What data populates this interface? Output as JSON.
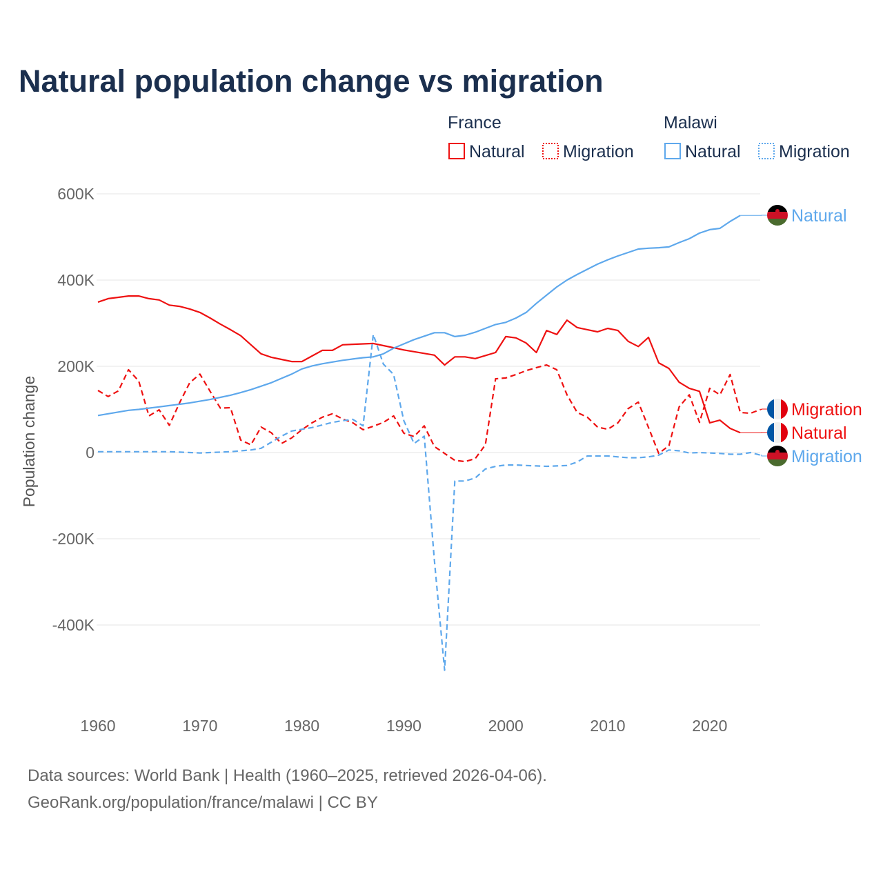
{
  "chart_data": {
    "type": "line",
    "title": "Natural population change vs migration",
    "xlabel": "",
    "ylabel": "Population change",
    "xlim": [
      1960,
      2025
    ],
    "ylim": [
      -530000,
      620000
    ],
    "grid": true,
    "legend_placement": "top-right",
    "x_ticks": [
      {
        "value": 1960,
        "label": "1960"
      },
      {
        "value": 1970,
        "label": "1970"
      },
      {
        "value": 1980,
        "label": "1980"
      },
      {
        "value": 1990,
        "label": "1990"
      },
      {
        "value": 2000,
        "label": "2000"
      },
      {
        "value": 2010,
        "label": "2010"
      },
      {
        "value": 2020,
        "label": "2020"
      }
    ],
    "y_ticks": [
      {
        "value": 600000,
        "label": "600K"
      },
      {
        "value": 400000,
        "label": "400K"
      },
      {
        "value": 200000,
        "label": "200K"
      },
      {
        "value": 0,
        "label": "0"
      },
      {
        "value": -200000,
        "label": "-200K"
      },
      {
        "value": -400000,
        "label": "-400K"
      }
    ],
    "legend": {
      "groups": [
        {
          "country": "France",
          "items": [
            {
              "label": "Natural",
              "style": "solid"
            },
            {
              "label": "Migration",
              "style": "dotted"
            }
          ],
          "color": "#ee1111"
        },
        {
          "country": "Malawi",
          "items": [
            {
              "label": "Natural",
              "style": "solid"
            },
            {
              "label": "Migration",
              "style": "dotted"
            }
          ],
          "color": "#5ea8ec"
        }
      ]
    },
    "series": [
      {
        "name": "France Natural",
        "country": "France",
        "kind": "Natural",
        "color": "#ee1111",
        "dash": false,
        "flag": "france",
        "end_label": "Natural",
        "start_year": 1960,
        "values": [
          349,
          357,
          360,
          363,
          363,
          357,
          354,
          342,
          339,
          333,
          325,
          312,
          298,
          285,
          271,
          250,
          229,
          221,
          216,
          211,
          211,
          224,
          237,
          237,
          250,
          251,
          252,
          253,
          248,
          243,
          238,
          234,
          230,
          226,
          203,
          222,
          222,
          218,
          225,
          232,
          269,
          266,
          254,
          232,
          283,
          274,
          307,
          290,
          285,
          280,
          288,
          283,
          258,
          246,
          267,
          208,
          195,
          163,
          149,
          142,
          69,
          75,
          56,
          46
        ],
        "unit_multiplier": 1000
      },
      {
        "name": "France Migration",
        "country": "France",
        "kind": "Migration",
        "color": "#ee1111",
        "dash": true,
        "flag": "france",
        "end_label": "Migration",
        "start_year": 1960,
        "values": [
          144,
          130,
          143,
          192,
          166,
          85,
          99,
          63,
          115,
          162,
          182,
          142,
          103,
          104,
          29,
          18,
          59,
          46,
          21,
          34,
          53,
          69,
          82,
          90,
          78,
          69,
          53,
          61,
          70,
          85,
          45,
          37,
          62,
          14,
          -2,
          -18,
          -21,
          -14,
          18,
          171,
          173,
          181,
          190,
          197,
          203,
          192,
          134,
          93,
          82,
          59,
          54,
          69,
          102,
          117,
          58,
          -2,
          16,
          106,
          134,
          70,
          149,
          134,
          181,
          93,
          91,
          100
        ],
        "unit_multiplier": 1000
      },
      {
        "name": "Malawi Natural",
        "country": "Malawi",
        "kind": "Natural",
        "color": "#5ea8ec",
        "dash": false,
        "flag": "malawi",
        "end_label": "Natural",
        "start_year": 1960,
        "values": [
          86,
          90,
          94,
          98,
          100,
          103,
          106,
          109,
          112,
          115,
          119,
          123,
          128,
          133,
          139,
          146,
          154,
          162,
          172,
          182,
          194,
          201,
          206,
          210,
          214,
          217,
          220,
          222,
          229,
          242,
          252,
          262,
          270,
          278,
          278,
          269,
          272,
          279,
          288,
          297,
          302,
          312,
          325,
          346,
          365,
          384,
          400,
          413,
          425,
          437,
          447,
          456,
          464,
          472,
          474,
          475,
          477,
          487,
          496,
          509,
          517,
          520,
          536,
          550
        ],
        "unit_multiplier": 1000
      },
      {
        "name": "Malawi Migration",
        "country": "Malawi",
        "kind": "Migration",
        "color": "#5ea8ec",
        "dash": true,
        "flag": "malawi",
        "end_label": "Migration",
        "start_year": 1960,
        "values": [
          2,
          2,
          2,
          2,
          2,
          2,
          2,
          2,
          1,
          0,
          -1,
          0,
          1,
          2,
          4,
          6,
          10,
          24,
          38,
          50,
          54,
          58,
          64,
          70,
          74,
          77,
          62,
          274,
          205,
          181,
          74,
          21,
          38,
          -250,
          -505,
          -66,
          -66,
          -59,
          -38,
          -32,
          -29,
          -29,
          -30,
          -31,
          -32,
          -31,
          -30,
          -22,
          -8,
          -8,
          -8,
          -10,
          -12,
          -12,
          -10,
          -6,
          6,
          4,
          -1,
          0,
          -1,
          -2,
          -4,
          -4,
          0,
          -6
        ],
        "unit_multiplier": 1000
      }
    ]
  },
  "footer": {
    "line1": "Data sources: World Bank | Health (1960–2025, retrieved 2026-04-06).",
    "line2": "GeoRank.org/population/france/malawi | CC BY"
  }
}
